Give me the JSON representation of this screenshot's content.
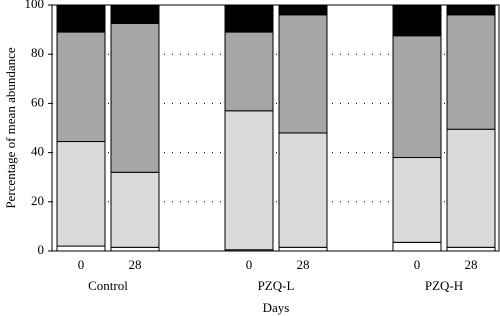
{
  "chart_data": {
    "type": "stacked-bar",
    "x_label": "Days",
    "y_label": "Percentage of mean abundance",
    "categories": [
      "0",
      "28",
      "0",
      "28",
      "0",
      "28"
    ],
    "groups": [
      "Control",
      "PZQ-L",
      "PZQ-H"
    ],
    "series": [
      {
        "color": "#ffffff",
        "values": [
          2,
          1.5,
          0.5,
          1.5,
          3.5,
          1.5
        ]
      },
      {
        "color": "#d9d9d9",
        "values": [
          42.5,
          30.5,
          56.5,
          46.5,
          34.5,
          48
        ]
      },
      {
        "color": "#a6a6a6",
        "values": [
          44.5,
          60.5,
          32,
          48,
          49.5,
          46.5
        ]
      },
      {
        "color": "#000000",
        "values": [
          11,
          7.5,
          11,
          4,
          12.5,
          4
        ]
      }
    ],
    "ylim": [
      0,
      100
    ],
    "yticks": [
      0,
      20,
      40,
      60,
      80,
      100
    ],
    "grid": true
  }
}
